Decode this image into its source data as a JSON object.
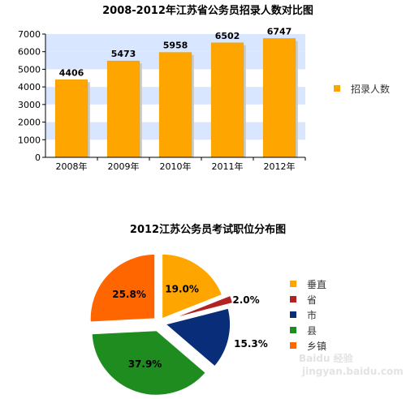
{
  "chart_data": [
    {
      "type": "bar",
      "title": "2008-2012年江苏省公务员招录人数对比图",
      "categories": [
        "2008年",
        "2009年",
        "2010年",
        "2011年",
        "2012年"
      ],
      "series": [
        {
          "name": "招录人数",
          "values": [
            4406,
            5473,
            5958,
            6502,
            6747
          ]
        }
      ],
      "data_labels": [
        "4406",
        "5473",
        "5958",
        "6502",
        "6747"
      ],
      "ylim": [
        0,
        7000
      ],
      "yticks": [
        0,
        1000,
        2000,
        3000,
        4000,
        5000,
        6000,
        7000
      ],
      "legend": "right",
      "grid": "alternating horizontal bands",
      "colors": {
        "bar": "#FFA500",
        "band": "#D9E6FF"
      }
    },
    {
      "type": "pie",
      "title": "2012江苏公务员考试职位分布图",
      "labels": [
        "垂直",
        "省",
        "市",
        "县",
        "乡镇"
      ],
      "values": [
        19.0,
        2.0,
        15.3,
        37.9,
        25.8
      ],
      "data_labels": [
        "19.0%",
        "2.0%",
        "15.3%",
        "37.9%",
        "25.8%"
      ],
      "colors": [
        "#FFA500",
        "#B22222",
        "#0A2D7A",
        "#1E8C1E",
        "#FF6600"
      ],
      "legend": "right",
      "exploded": true
    }
  ],
  "watermark": {
    "brand": "Baidu 经验",
    "url": "jingyan.baidu.com"
  }
}
